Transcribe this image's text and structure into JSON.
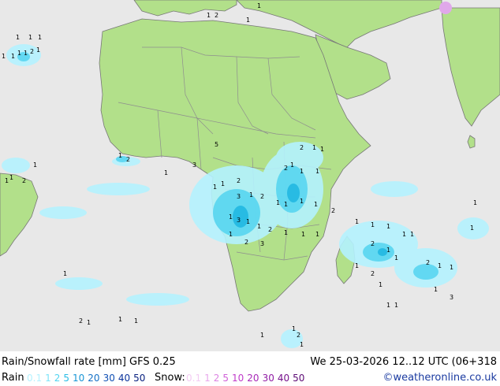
{
  "colors": {
    "ocean": "#e8e8e8",
    "land": "#b2e08a",
    "border": "#8e8e8e",
    "coast": "#777777",
    "rain_light": "#a8f0ff",
    "rain_mid": "#40d8f0",
    "rain_dark": "#1ab4e0"
  },
  "footer": {
    "title": "Rain/Snowfall rate [mm] GFS 0.25",
    "datetime": "We 25-03-2026 12..12 UTC (06+318",
    "rain_label": "Rain",
    "snow_label": "Snow:",
    "credit": "©weatheronline.co.uk",
    "rain_legend": [
      {
        "label": "0.1",
        "color": "#b4f2ff"
      },
      {
        "label": "1",
        "color": "#7ee4f8"
      },
      {
        "label": "2",
        "color": "#52d4f0"
      },
      {
        "label": "5",
        "color": "#28bce6"
      },
      {
        "label": "10",
        "color": "#1896d6"
      },
      {
        "label": "20",
        "color": "#1470c6"
      },
      {
        "label": "30",
        "color": "#1050b4"
      },
      {
        "label": "40",
        "color": "#0c349c"
      },
      {
        "label": "50",
        "color": "#0a2280"
      }
    ],
    "snow_legend": [
      {
        "label": "0.1",
        "color": "#f4ccf4"
      },
      {
        "label": "1",
        "color": "#e8a8ec"
      },
      {
        "label": "2",
        "color": "#dc84e2"
      },
      {
        "label": "5",
        "color": "#d060d8"
      },
      {
        "label": "10",
        "color": "#c03cca"
      },
      {
        "label": "20",
        "color": "#a828b8"
      },
      {
        "label": "30",
        "color": "#901ca4"
      },
      {
        "label": "40",
        "color": "#76128c"
      },
      {
        "label": "50",
        "color": "#5c0a74"
      }
    ]
  },
  "map_labels": [
    {
      "t": "1"
    },
    {
      "t": "1"
    },
    {
      "t": "1"
    },
    {
      "t": "1"
    },
    {
      "t": "2"
    },
    {
      "t": "1"
    },
    {
      "t": "1"
    },
    {
      "t": "1"
    },
    {
      "t": "1"
    },
    {
      "t": "1"
    },
    {
      "t": "2"
    },
    {
      "t": "1"
    },
    {
      "t": "1"
    },
    {
      "t": "5"
    },
    {
      "t": "2"
    },
    {
      "t": "1"
    },
    {
      "t": "1"
    },
    {
      "t": "1"
    },
    {
      "t": "2"
    },
    {
      "t": "1"
    },
    {
      "t": "3"
    },
    {
      "t": "1"
    },
    {
      "t": "1"
    },
    {
      "t": "2"
    },
    {
      "t": "1"
    },
    {
      "t": "1"
    },
    {
      "t": "1"
    },
    {
      "t": "2"
    },
    {
      "t": "2"
    },
    {
      "t": "1"
    },
    {
      "t": "1"
    },
    {
      "t": "1"
    },
    {
      "t": "3"
    },
    {
      "t": "1"
    },
    {
      "t": "2"
    },
    {
      "t": "1"
    },
    {
      "t": "1"
    },
    {
      "t": "1"
    },
    {
      "t": "1"
    },
    {
      "t": "2"
    },
    {
      "t": "1"
    },
    {
      "t": "3"
    },
    {
      "t": "1"
    },
    {
      "t": "1"
    },
    {
      "t": "2"
    },
    {
      "t": "1"
    },
    {
      "t": "1"
    },
    {
      "t": "1"
    },
    {
      "t": "1"
    },
    {
      "t": "2"
    },
    {
      "t": "3"
    },
    {
      "t": "1"
    },
    {
      "t": "1"
    },
    {
      "t": "1"
    },
    {
      "t": "1"
    },
    {
      "t": "1"
    },
    {
      "t": "2"
    },
    {
      "t": "1"
    },
    {
      "t": "1"
    },
    {
      "t": "2"
    },
    {
      "t": "1"
    },
    {
      "t": "1"
    },
    {
      "t": "1"
    },
    {
      "t": "2"
    },
    {
      "t": "1"
    },
    {
      "t": "1"
    },
    {
      "t": "3"
    },
    {
      "t": "1"
    },
    {
      "t": "1"
    },
    {
      "t": "1"
    },
    {
      "t": "2"
    },
    {
      "t": "1"
    },
    {
      "t": "1"
    },
    {
      "t": "1"
    },
    {
      "t": "1"
    },
    {
      "t": "2"
    },
    {
      "t": "1"
    },
    {
      "t": "1"
    },
    {
      "t": "1"
    },
    {
      "t": "1"
    }
  ]
}
